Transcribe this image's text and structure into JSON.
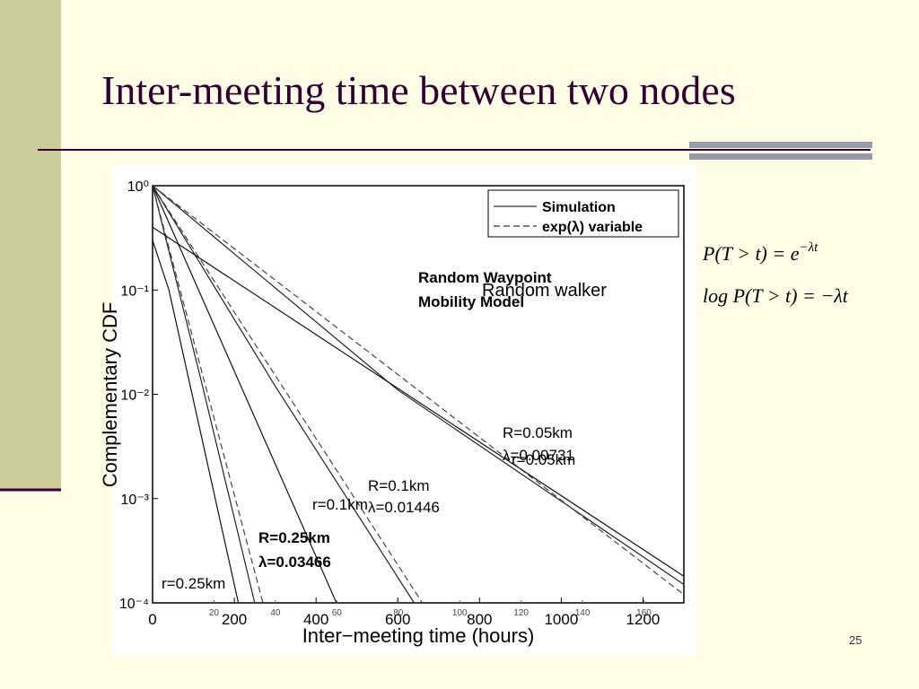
{
  "slide": {
    "title": "Inter-meeting time between two nodes",
    "formulas": [
      {
        "text": "P(T > t) = e",
        "sup": "−λt"
      },
      {
        "text": "log P(T > t) = −λt"
      }
    ],
    "page_number": "25"
  },
  "chart_data": {
    "type": "line",
    "x_label": "Inter−meeting time (hours)",
    "y_label": "Complementary CDF",
    "xlim": [
      0,
      1300
    ],
    "xticks": [
      0,
      200,
      400,
      600,
      800,
      1000,
      1200
    ],
    "x2lim": [
      0,
      173
    ],
    "x2ticks": [
      20,
      40,
      60,
      80,
      100,
      120,
      140,
      160
    ],
    "log_y": true,
    "ylim": [
      0.0001,
      1
    ],
    "yticks": [
      {
        "value": 1,
        "label": "10⁰"
      },
      {
        "value": 0.1,
        "label": "10⁻¹"
      },
      {
        "value": 0.01,
        "label": "10⁻²"
      },
      {
        "value": 0.001,
        "label": "10⁻³"
      },
      {
        "value": 0.0001,
        "label": "10⁻⁴"
      }
    ],
    "legend": [
      "Simulation",
      "exp(λ) variable"
    ],
    "annotations": [
      "Random Waypoint",
      "Mobility Model",
      "Random walker",
      "R=0.05km",
      "λ=0.00731",
      "r=0.05km",
      "R=0.1km",
      "λ=0.01446",
      "r=0.1km",
      "R=0.25km",
      "λ=0.03466",
      "r=0.25km"
    ],
    "series": [
      {
        "color": "#222222",
        "style": "solid",
        "x": [
          0,
          120,
          250
        ],
        "values": [
          1,
          0.013,
          0.0001
        ]
      },
      {
        "color": "#444444",
        "style": "dashed",
        "x": [
          0,
          270
        ],
        "values": [
          1,
          0.0001
        ]
      },
      {
        "color": "#222222",
        "style": "solid",
        "x": [
          0,
          300,
          640
        ],
        "values": [
          1,
          0.012,
          0.0001
        ]
      },
      {
        "color": "#444444",
        "style": "dashed",
        "x": [
          0,
          660
        ],
        "values": [
          1,
          0.0001
        ]
      },
      {
        "color": "#222222",
        "style": "solid",
        "x": [
          0,
          600,
          1300
        ],
        "values": [
          1,
          0.011,
          0.00015
        ]
      },
      {
        "color": "#444444",
        "style": "dashed",
        "x": [
          0,
          1300
        ],
        "values": [
          1,
          0.00012
        ]
      },
      {
        "color": "#111111",
        "style": "solid",
        "x": [
          0,
          40,
          210
        ],
        "values": [
          0.3,
          0.1,
          0.0001
        ]
      },
      {
        "color": "#111111",
        "style": "solid",
        "x": [
          0,
          450
        ],
        "values": [
          1,
          0.0001
        ]
      },
      {
        "color": "#111111",
        "style": "solid",
        "x": [
          0,
          1300
        ],
        "values": [
          0.4,
          0.00018
        ]
      }
    ]
  }
}
